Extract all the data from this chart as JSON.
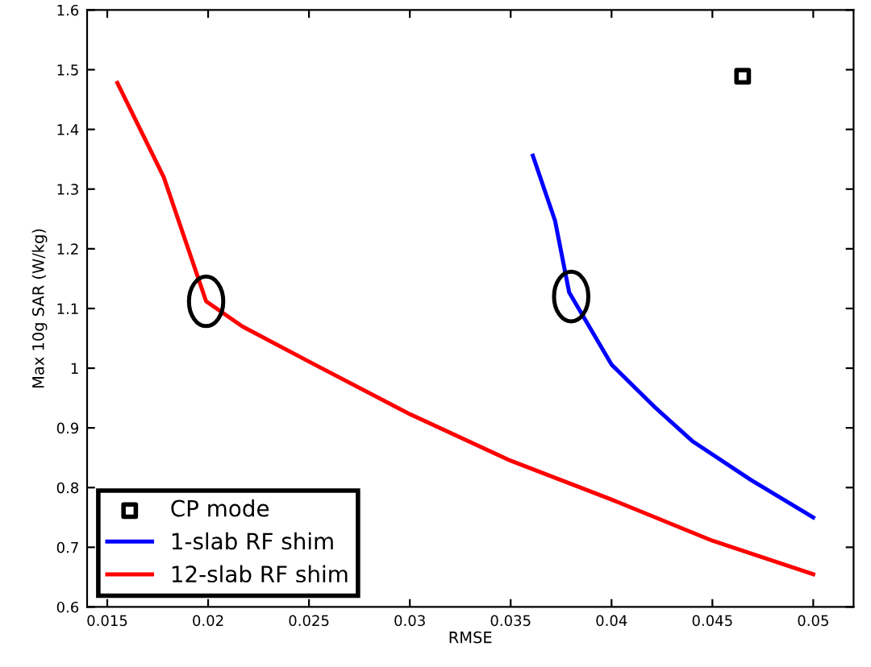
{
  "chart_data": {
    "type": "line",
    "xlabel": "RMSE",
    "ylabel": "Max 10g SAR (W/kg)",
    "xlim": [
      0.014,
      0.052
    ],
    "ylim": [
      0.6,
      1.6
    ],
    "xticks": [
      0.015,
      0.02,
      0.025,
      0.03,
      0.035,
      0.04,
      0.045,
      0.05
    ],
    "yticks": [
      0.6,
      0.7,
      0.8,
      0.9,
      1,
      1.1,
      1.2,
      1.3,
      1.4,
      1.5,
      1.6
    ],
    "grid": false,
    "legend": "bottom left",
    "series": [
      {
        "name": "CP mode",
        "type": "scatter",
        "marker": "square",
        "color": "#000000",
        "x": [
          0.0465
        ],
        "values": [
          1.489
        ]
      },
      {
        "name": "1-slab RF shim",
        "color": "#0000ff",
        "x": [
          0.0361,
          0.0372,
          0.0379,
          0.04,
          0.0422,
          0.044,
          0.0469,
          0.05
        ],
        "values": [
          1.356,
          1.247,
          1.127,
          1.006,
          0.933,
          0.878,
          0.813,
          0.75
        ]
      },
      {
        "name": "12-slab RF shim",
        "color": "#ff0000",
        "x": [
          0.0155,
          0.0178,
          0.0199,
          0.0217,
          0.025,
          0.03,
          0.035,
          0.04,
          0.045,
          0.05
        ],
        "values": [
          1.478,
          1.32,
          1.112,
          1.07,
          1.011,
          0.923,
          0.845,
          0.78,
          0.711,
          0.655
        ]
      }
    ]
  }
}
